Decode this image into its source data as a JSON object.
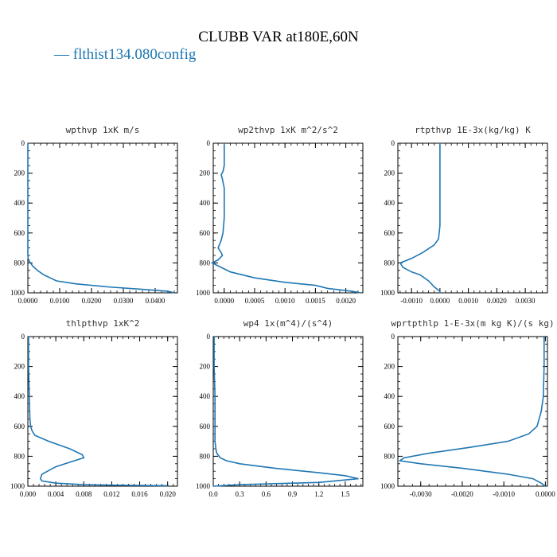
{
  "title": "CLUBB VAR at180E,60N",
  "legend": {
    "label": "flthist134.080config",
    "marker": "—",
    "color": "#1f77b4"
  },
  "chart_data": [
    {
      "type": "line",
      "title": "wpthvp   1xK m/s",
      "xlim": [
        0.0,
        0.047
      ],
      "ylim": [
        1000,
        0
      ],
      "xticks": [
        0.0,
        0.01,
        0.02,
        0.03,
        0.04
      ],
      "xtick_labels": [
        "0.0000",
        "0.0100",
        "0.0200",
        "0.0300",
        "0.0400"
      ],
      "yticks": [
        0,
        200,
        400,
        600,
        800,
        1000
      ],
      "ytick_labels": [
        "0",
        "200",
        "400",
        "600",
        "800",
        "1000"
      ],
      "series": [
        {
          "x": [
            0.0,
            0.0,
            0.0,
            0.0,
            0.0,
            0.0,
            0.0,
            0.0,
            0.0,
            0.0001,
            0.0005,
            0.0015,
            0.003,
            0.005,
            0.007,
            0.009,
            0.015,
            0.025,
            0.035,
            0.044,
            0.046
          ],
          "y": [
            0,
            100,
            200,
            300,
            400,
            500,
            600,
            700,
            750,
            770,
            790,
            820,
            850,
            880,
            900,
            920,
            940,
            960,
            975,
            990,
            1000
          ]
        }
      ]
    },
    {
      "type": "line",
      "title": "wp2thvp   1xK m^2/s^2",
      "xlim": [
        -0.00018,
        0.00228
      ],
      "ylim": [
        1000,
        0
      ],
      "xticks": [
        0.0,
        0.0005,
        0.001,
        0.0015,
        0.002
      ],
      "xtick_labels": [
        "0.0000",
        "0.0005",
        "0.0010",
        "0.0015",
        "0.0020"
      ],
      "yticks": [
        0,
        200,
        400,
        600,
        800,
        1000
      ],
      "ytick_labels": [
        "0",
        "200",
        "400",
        "600",
        "800",
        "1000"
      ],
      "series": [
        {
          "x": [
            0.0,
            0.0,
            -2e-05,
            -5e-05,
            -3e-05,
            0.0,
            0.0,
            0.0,
            -2e-05,
            -5e-05,
            -0.0001,
            -5e-05,
            -3e-05,
            -0.0001,
            -0.0002,
            -5e-05,
            0.0001,
            0.0005,
            0.001,
            0.0015,
            0.0017,
            0.0021,
            0.00225
          ],
          "y": [
            0,
            150,
            190,
            210,
            240,
            300,
            400,
            500,
            600,
            650,
            700,
            730,
            750,
            780,
            800,
            830,
            860,
            900,
            930,
            950,
            970,
            990,
            1000
          ]
        }
      ]
    },
    {
      "type": "line",
      "title": "rtpthvp   1E-3x(kg/kg) K",
      "xlim": [
        -0.00148,
        0.00378
      ],
      "ylim": [
        1000,
        0
      ],
      "xticks": [
        -0.001,
        0.0,
        0.001,
        0.002,
        0.003
      ],
      "xtick_labels": [
        "-0.0010",
        "0.0000",
        "0.0010",
        "0.0020",
        "0.0030"
      ],
      "yticks": [
        0,
        200,
        400,
        600,
        800,
        1000
      ],
      "ytick_labels": [
        "0",
        "200",
        "400",
        "600",
        "800",
        "1000"
      ],
      "series": [
        {
          "x": [
            0.0,
            0.0,
            0.0,
            0.0,
            0.0,
            -5e-05,
            -0.0002,
            -0.0006,
            -0.001,
            -0.0014,
            -0.0013,
            -0.001,
            -0.0007,
            -0.0004,
            -0.0002,
            0.0,
            0.0
          ],
          "y": [
            0,
            100,
            200,
            300,
            550,
            640,
            680,
            730,
            770,
            800,
            830,
            860,
            880,
            920,
            960,
            990,
            1000
          ]
        }
      ]
    },
    {
      "type": "line",
      "title": "thlpthvp   1xK^2",
      "xlim": [
        0.0,
        0.0214
      ],
      "ylim": [
        1000,
        0
      ],
      "xticks": [
        0.0,
        0.004,
        0.008,
        0.012,
        0.016,
        0.02
      ],
      "xtick_labels": [
        "0.000",
        "0.004",
        "0.008",
        "0.012",
        "0.016",
        "0.020"
      ],
      "yticks": [
        0,
        200,
        400,
        600,
        800,
        1000
      ],
      "ytick_labels": [
        "0",
        "200",
        "400",
        "600",
        "800",
        "1000"
      ],
      "series": [
        {
          "x": [
            0.0001,
            0.0001,
            0.0002,
            0.0003,
            0.0004,
            0.0006,
            0.001,
            0.003,
            0.006,
            0.0078,
            0.008,
            0.006,
            0.004,
            0.002,
            0.0018,
            0.002,
            0.004,
            0.008,
            0.012,
            0.016,
            0.02
          ],
          "y": [
            0,
            200,
            400,
            550,
            600,
            630,
            660,
            700,
            750,
            790,
            810,
            840,
            870,
            920,
            950,
            965,
            980,
            990,
            993,
            995,
            997
          ]
        }
      ]
    },
    {
      "type": "line",
      "title": "wp4   1x(m^4)/(s^4)",
      "xlim": [
        0.0,
        1.7
      ],
      "ylim": [
        1000,
        0
      ],
      "xticks": [
        0.0,
        0.3,
        0.6,
        0.9,
        1.2,
        1.5
      ],
      "xtick_labels": [
        "0.0",
        "0.3",
        "0.6",
        "0.9",
        "1.2",
        "1.5"
      ],
      "yticks": [
        0,
        200,
        400,
        600,
        800,
        1000
      ],
      "ytick_labels": [
        "0",
        "200",
        "400",
        "600",
        "800",
        "1000"
      ],
      "series": [
        {
          "x": [
            0.01,
            0.01,
            0.02,
            0.02,
            0.02,
            0.03,
            0.04,
            0.08,
            0.15,
            0.3,
            0.7,
            1.2,
            1.5,
            1.65,
            1.2,
            0.3,
            0.0
          ],
          "y": [
            0,
            200,
            400,
            600,
            700,
            750,
            780,
            810,
            830,
            850,
            880,
            910,
            930,
            950,
            975,
            990,
            1000
          ]
        }
      ]
    },
    {
      "type": "line",
      "title": "wprtpthlp   1-E-3x(m kg K)/(s kg)",
      "xlim": [
        -0.00355,
        5e-05
      ],
      "ylim": [
        1000,
        0
      ],
      "xticks": [
        -0.003,
        -0.002,
        -0.001,
        0.0
      ],
      "xtick_labels": [
        "-0.0030",
        "-0.0020",
        "-0.0010",
        "0.0000"
      ],
      "yticks": [
        0,
        200,
        400,
        600,
        800,
        1000
      ],
      "ytick_labels": [
        "0",
        "200",
        "400",
        "600",
        "800",
        "1000"
      ],
      "series": [
        {
          "x": [
            -3e-05,
            -3e-05,
            -5e-05,
            -0.0001,
            -0.0002,
            -0.0004,
            -0.0009,
            -0.0018,
            -0.0028,
            -0.0034,
            -0.0035,
            -0.003,
            -0.002,
            -0.0009,
            -0.0003,
            -0.0001,
            0.0
          ],
          "y": [
            0,
            200,
            400,
            500,
            600,
            650,
            700,
            740,
            780,
            810,
            830,
            850,
            880,
            920,
            950,
            980,
            1000
          ]
        }
      ]
    }
  ]
}
